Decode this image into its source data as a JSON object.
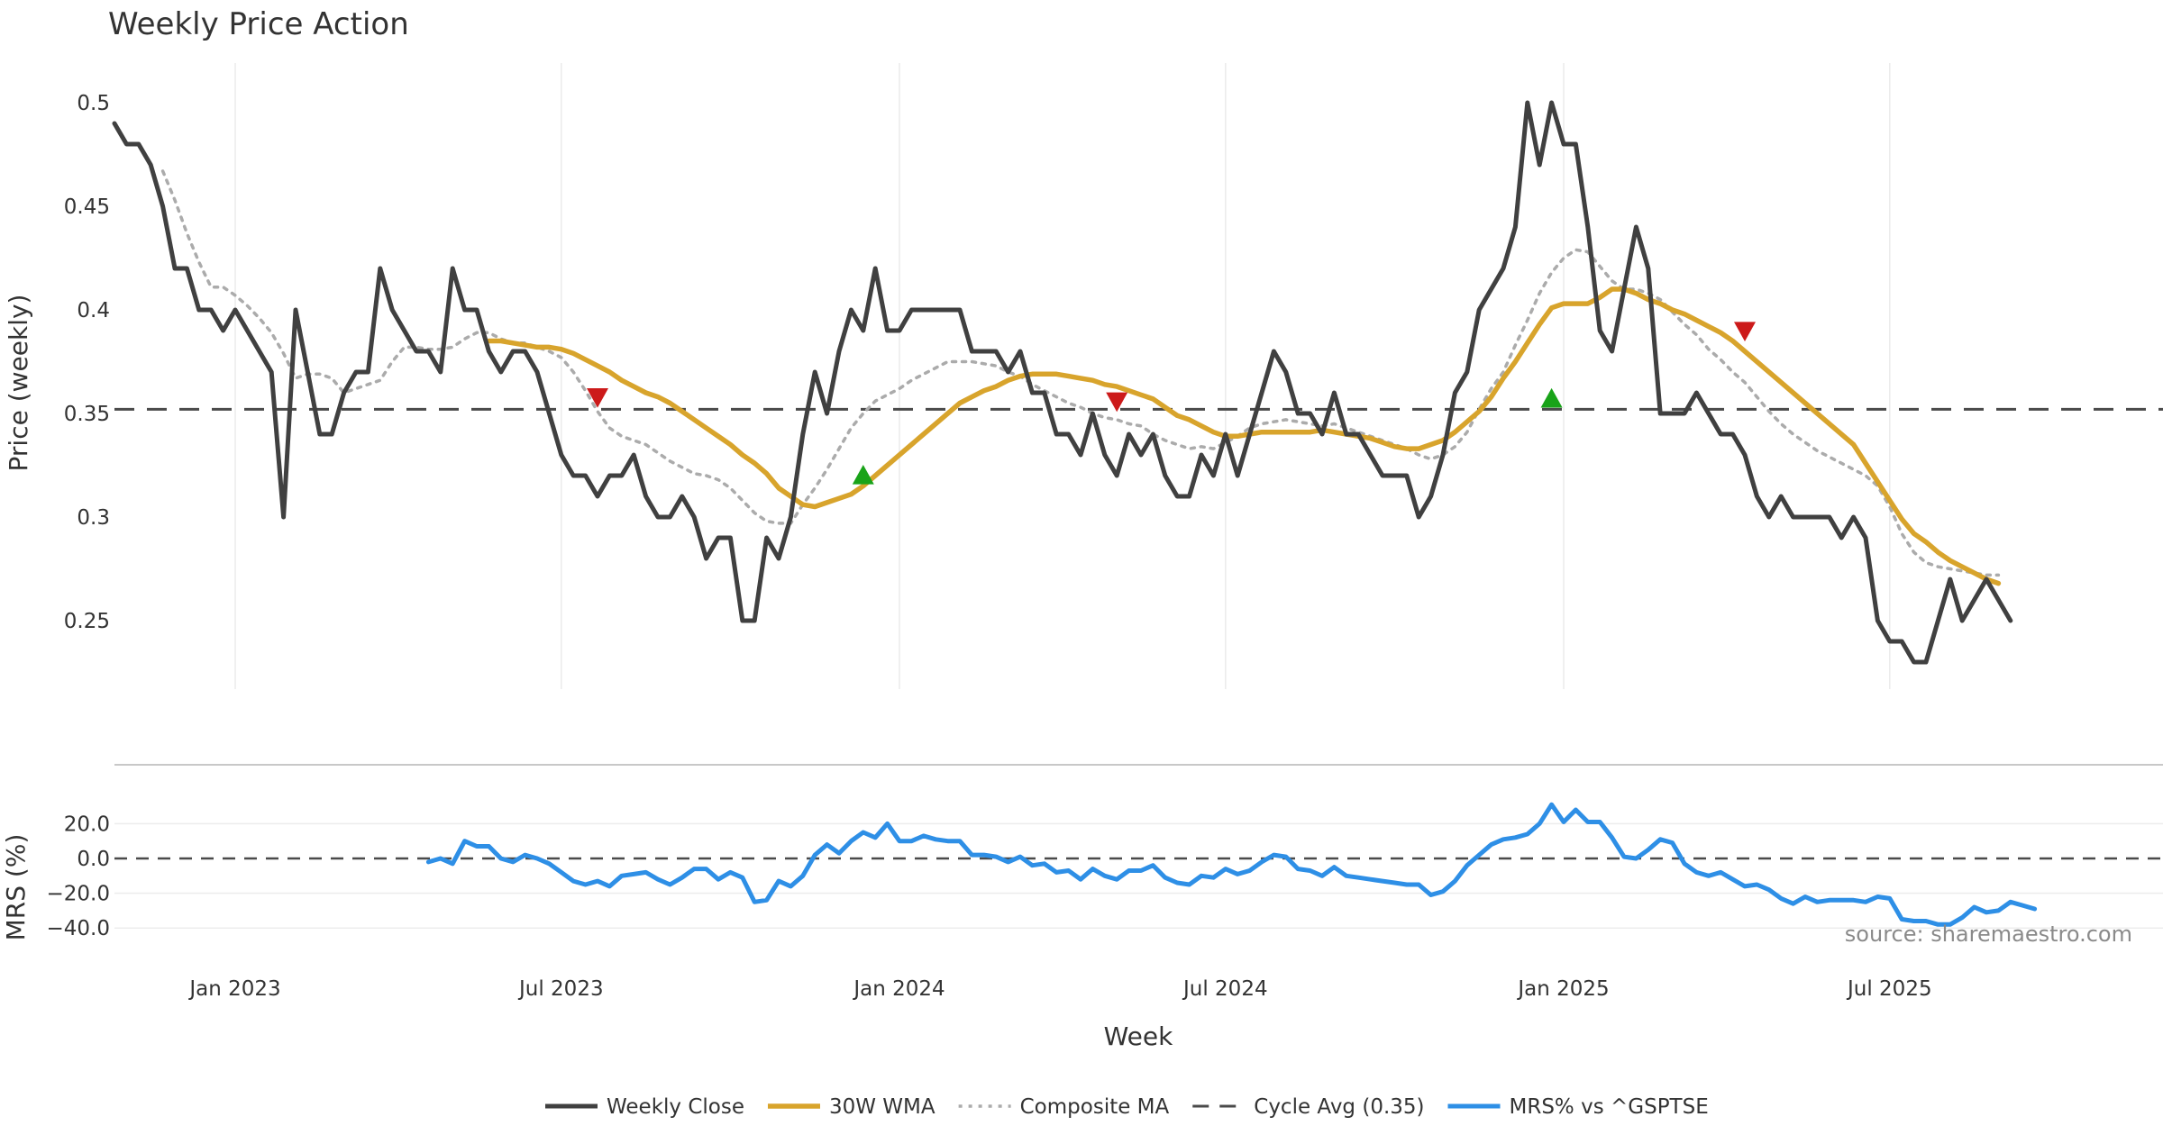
{
  "chart_data": [
    {
      "type": "line",
      "panel": "price",
      "title": "Weekly Price Action",
      "ylabel": "Price (weekly)",
      "xlabel": "Week",
      "xlim": [
        0,
        174
      ],
      "ylim": [
        0.21,
        0.51
      ],
      "yticks": [
        0.25,
        0.3,
        0.35,
        0.4,
        0.45,
        0.5
      ],
      "ytick_labels": [
        "0.25",
        "0.3",
        "0.35",
        "0.4",
        "0.45",
        "0.5"
      ],
      "xticks": [
        10,
        37,
        65,
        92,
        120,
        147
      ],
      "xtick_labels": [
        "Jan 2023",
        "Jul 2023",
        "Jan 2024",
        "Jul 2024",
        "Jan 2025",
        "Jul 2025"
      ],
      "grid": "vertical",
      "reference_line": {
        "name": "Cycle Avg (0.35)",
        "value": 0.352
      },
      "series": [
        {
          "name": "Weekly Close",
          "color": "#404040",
          "style": "solid",
          "x0": 0,
          "values": [
            0.49,
            0.48,
            0.48,
            0.47,
            0.45,
            0.42,
            0.42,
            0.4,
            0.4,
            0.39,
            0.4,
            0.39,
            0.38,
            0.37,
            0.3,
            0.4,
            0.37,
            0.34,
            0.34,
            0.36,
            0.37,
            0.37,
            0.42,
            0.4,
            0.39,
            0.38,
            0.38,
            0.37,
            0.42,
            0.4,
            0.4,
            0.38,
            0.37,
            0.38,
            0.38,
            0.37,
            0.35,
            0.33,
            0.32,
            0.32,
            0.31,
            0.32,
            0.32,
            0.33,
            0.31,
            0.3,
            0.3,
            0.31,
            0.3,
            0.28,
            0.29,
            0.29,
            0.25,
            0.25,
            0.29,
            0.28,
            0.3,
            0.34,
            0.37,
            0.35,
            0.38,
            0.4,
            0.39,
            0.42,
            0.39,
            0.39,
            0.4,
            0.4,
            0.4,
            0.4,
            0.4,
            0.38,
            0.38,
            0.38,
            0.37,
            0.38,
            0.36,
            0.36,
            0.34,
            0.34,
            0.33,
            0.35,
            0.33,
            0.32,
            0.34,
            0.33,
            0.34,
            0.32,
            0.31,
            0.31,
            0.33,
            0.32,
            0.34,
            0.32,
            0.34,
            0.36,
            0.38,
            0.37,
            0.35,
            0.35,
            0.34,
            0.36,
            0.34,
            0.34,
            0.33,
            0.32,
            0.32,
            0.32,
            0.3,
            0.31,
            0.33,
            0.36,
            0.37,
            0.4,
            0.41,
            0.42,
            0.44,
            0.5,
            0.47,
            0.5,
            0.48,
            0.48,
            0.44,
            0.39,
            0.38,
            0.41,
            0.44,
            0.42,
            0.35,
            0.35,
            0.35,
            0.36,
            0.35,
            0.34,
            0.34,
            0.33,
            0.31,
            0.3,
            0.31,
            0.3,
            0.3,
            0.3,
            0.3,
            0.29,
            0.3,
            0.29,
            0.25,
            0.24,
            0.24,
            0.23,
            0.23,
            0.25,
            0.27,
            0.25,
            0.26,
            0.27,
            0.26,
            0.25
          ]
        },
        {
          "name": "30W WMA",
          "color": "#d8a42c",
          "style": "solid",
          "x0": 31,
          "values": [
            0.385,
            0.385,
            0.384,
            0.383,
            0.382,
            0.382,
            0.381,
            0.379,
            0.376,
            0.373,
            0.37,
            0.366,
            0.363,
            0.36,
            0.358,
            0.355,
            0.351,
            0.347,
            0.343,
            0.339,
            0.335,
            0.33,
            0.326,
            0.321,
            0.314,
            0.31,
            0.306,
            0.305,
            0.307,
            0.309,
            0.311,
            0.315,
            0.32,
            0.325,
            0.33,
            0.335,
            0.34,
            0.345,
            0.35,
            0.355,
            0.358,
            0.361,
            0.363,
            0.366,
            0.368,
            0.369,
            0.369,
            0.369,
            0.368,
            0.367,
            0.366,
            0.364,
            0.363,
            0.361,
            0.359,
            0.357,
            0.353,
            0.349,
            0.347,
            0.344,
            0.341,
            0.339,
            0.339,
            0.34,
            0.341,
            0.341,
            0.341,
            0.341,
            0.341,
            0.342,
            0.341,
            0.34,
            0.339,
            0.338,
            0.336,
            0.334,
            0.333,
            0.333,
            0.335,
            0.337,
            0.341,
            0.346,
            0.351,
            0.358,
            0.367,
            0.375,
            0.384,
            0.393,
            0.401,
            0.403,
            0.403,
            0.403,
            0.406,
            0.41,
            0.41,
            0.408,
            0.405,
            0.403,
            0.4,
            0.398,
            0.395,
            0.392,
            0.389,
            0.385,
            0.38,
            0.375,
            0.37,
            0.365,
            0.36,
            0.355,
            0.35,
            0.345,
            0.34,
            0.335,
            0.326,
            0.317,
            0.308,
            0.299,
            0.292,
            0.288,
            0.283,
            0.279,
            0.276,
            0.273,
            0.27,
            0.268
          ]
        },
        {
          "name": "Composite MA",
          "color": "#ababab",
          "style": "dotted",
          "x0": 4,
          "values": [
            0.467,
            0.453,
            0.437,
            0.423,
            0.411,
            0.411,
            0.407,
            0.402,
            0.396,
            0.389,
            0.379,
            0.367,
            0.369,
            0.369,
            0.367,
            0.36,
            0.362,
            0.364,
            0.366,
            0.375,
            0.382,
            0.382,
            0.381,
            0.381,
            0.382,
            0.386,
            0.389,
            0.389,
            0.386,
            0.384,
            0.384,
            0.382,
            0.38,
            0.377,
            0.37,
            0.361,
            0.351,
            0.343,
            0.339,
            0.337,
            0.335,
            0.331,
            0.327,
            0.324,
            0.321,
            0.32,
            0.318,
            0.314,
            0.308,
            0.302,
            0.298,
            0.297,
            0.297,
            0.306,
            0.314,
            0.323,
            0.333,
            0.343,
            0.35,
            0.356,
            0.359,
            0.362,
            0.366,
            0.369,
            0.372,
            0.375,
            0.375,
            0.375,
            0.374,
            0.373,
            0.37,
            0.368,
            0.364,
            0.361,
            0.358,
            0.355,
            0.353,
            0.35,
            0.348,
            0.347,
            0.345,
            0.344,
            0.34,
            0.337,
            0.335,
            0.333,
            0.334,
            0.333,
            0.336,
            0.339,
            0.343,
            0.345,
            0.346,
            0.347,
            0.346,
            0.345,
            0.344,
            0.345,
            0.343,
            0.341,
            0.339,
            0.337,
            0.335,
            0.333,
            0.33,
            0.328,
            0.33,
            0.334,
            0.341,
            0.352,
            0.362,
            0.37,
            0.383,
            0.395,
            0.408,
            0.418,
            0.425,
            0.429,
            0.428,
            0.421,
            0.414,
            0.41,
            0.41,
            0.408,
            0.405,
            0.399,
            0.393,
            0.388,
            0.381,
            0.376,
            0.37,
            0.365,
            0.358,
            0.351,
            0.345,
            0.34,
            0.336,
            0.332,
            0.329,
            0.326,
            0.323,
            0.32,
            0.315,
            0.305,
            0.292,
            0.283,
            0.278,
            0.276,
            0.275,
            0.274,
            0.273,
            0.272,
            0.272
          ]
        }
      ],
      "markers": [
        {
          "type": "sell",
          "x": 40,
          "y": 0.358,
          "color": "#cc1a1a"
        },
        {
          "type": "buy",
          "x": 62,
          "y": 0.32,
          "color": "#19a319"
        },
        {
          "type": "sell",
          "x": 83,
          "y": 0.356,
          "color": "#cc1a1a"
        },
        {
          "type": "buy",
          "x": 119,
          "y": 0.357,
          "color": "#19a319"
        },
        {
          "type": "sell",
          "x": 135,
          "y": 0.39,
          "color": "#cc1a1a"
        }
      ]
    },
    {
      "type": "line",
      "panel": "mrs",
      "ylabel": "MRS (%)",
      "ylim": [
        -40,
        30
      ],
      "yticks": [
        -40,
        -20,
        0,
        20
      ],
      "ytick_labels": [
        "−40.0",
        "−20.0",
        "0.0",
        "20.0"
      ],
      "grid": "horizontal",
      "reference_line": {
        "name": "zero",
        "value": 0
      },
      "series": [
        {
          "name": "MRS% vs ^GSPTSE",
          "color": "#2e8fe6",
          "style": "solid",
          "x0": 26,
          "values": [
            -2,
            0,
            -3,
            10,
            7,
            7,
            0,
            -2,
            2,
            0,
            -3,
            -8,
            -13,
            -15,
            -13,
            -16,
            -10,
            -9,
            -8,
            -12,
            -15,
            -11,
            -6,
            -6,
            -12,
            -8,
            -11,
            -25,
            -24,
            -13,
            -16,
            -10,
            2,
            8,
            3,
            10,
            15,
            12,
            20,
            10,
            10,
            13,
            11,
            10,
            10,
            2,
            2,
            1,
            -2,
            1,
            -4,
            -3,
            -8,
            -7,
            -12,
            -6,
            -10,
            -12,
            -7,
            -7,
            -4,
            -11,
            -14,
            -15,
            -10,
            -11,
            -6,
            -9,
            -7,
            -2,
            2,
            1,
            -6,
            -7,
            -10,
            -5,
            -10,
            -11,
            -12,
            -13,
            -14,
            -15,
            -15,
            -21,
            -19,
            -13,
            -4,
            2,
            8,
            11,
            12,
            14,
            20,
            31,
            21,
            28,
            21,
            21,
            12,
            1,
            0,
            5,
            11,
            9,
            -3,
            -8,
            -10,
            -8,
            -12,
            -16,
            -15,
            -18,
            -23,
            -26,
            -22,
            -25,
            -24,
            -24,
            -24,
            -25,
            -22,
            -23,
            -35,
            -36,
            -36,
            -38,
            -38,
            -34,
            -28,
            -31,
            -30,
            -25,
            -27,
            -29
          ]
        }
      ]
    }
  ],
  "annotations": {
    "source": "source: sharemaestro.com"
  }
}
